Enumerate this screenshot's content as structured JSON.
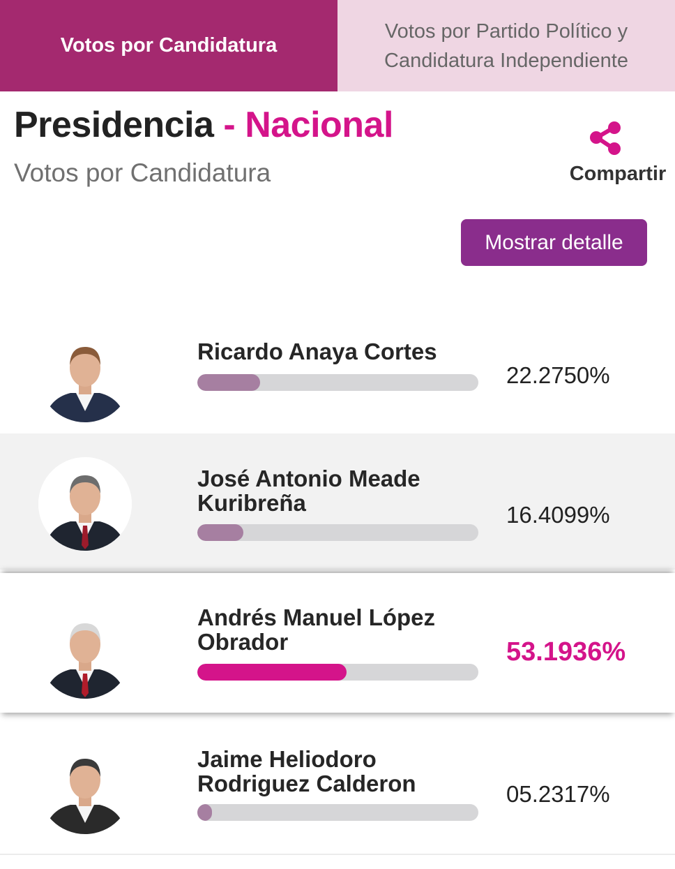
{
  "tabs": {
    "active": "Votos por Candidatura",
    "inactive_line1": "Votos por Partido Político y",
    "inactive_line2": "Candidatura Independiente"
  },
  "header": {
    "title": "Presidencia",
    "separator": "-",
    "region": "Nacional",
    "subtitle": "Votos por Candidatura"
  },
  "share": {
    "label": "Compartir",
    "icon": "share-icon"
  },
  "detail_button": {
    "label": "Mostrar detalle"
  },
  "colors": {
    "tab_active": "#a4296f",
    "tab_inactive": "#efd6e3",
    "accent": "#d4148a",
    "button": "#8a2d8c",
    "bar_default": "#a67fa1",
    "bar_winner": "#d4148a"
  },
  "candidates": [
    {
      "name": "Ricardo Anaya Cortes",
      "percent_label": "22.2750%",
      "percent": 22.275,
      "winner": false,
      "avatar": "candidate-photo"
    },
    {
      "name": "José Antonio Meade Kuribreña",
      "percent_label": "16.4099%",
      "percent": 16.4099,
      "winner": false,
      "avatar": "candidate-photo"
    },
    {
      "name": "Andrés Manuel López Obrador",
      "percent_label": "53.1936%",
      "percent": 53.1936,
      "winner": true,
      "avatar": "candidate-photo"
    },
    {
      "name": "Jaime Heliodoro Rodriguez Calderon",
      "percent_label": "05.2317%",
      "percent": 5.2317,
      "winner": false,
      "avatar": "candidate-photo"
    }
  ]
}
